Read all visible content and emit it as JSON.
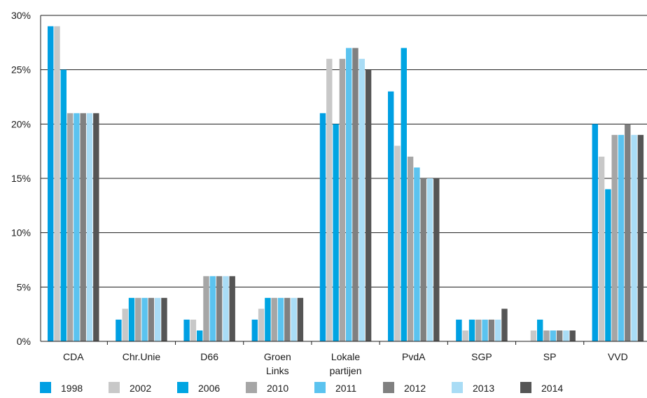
{
  "chart_data": {
    "type": "bar",
    "title": "",
    "xlabel": "",
    "ylabel": "",
    "ylim": [
      0,
      30
    ],
    "grid": true,
    "legend_position": "bottom",
    "y_ticks": [
      "0%",
      "5%",
      "10%",
      "15%",
      "20%",
      "25%",
      "30%"
    ],
    "categories": [
      [
        "CDA"
      ],
      [
        "Chr.Unie"
      ],
      [
        "D66"
      ],
      [
        "Groen",
        "Links"
      ],
      [
        "Lokale",
        "partijen"
      ],
      [
        "PvdA"
      ],
      [
        "SGP"
      ],
      [
        "SP"
      ],
      [
        "VVD"
      ]
    ],
    "series": [
      {
        "name": "1998",
        "color": "#009fe3",
        "values": [
          29,
          2,
          2,
          2,
          21,
          23,
          2,
          0,
          20
        ]
      },
      {
        "name": "2002",
        "color": "#c8c8c8",
        "values": [
          29,
          3,
          2,
          3,
          26,
          18,
          1,
          1,
          17
        ]
      },
      {
        "name": "2006",
        "color": "#00a5e2",
        "values": [
          25,
          4,
          1,
          4,
          20,
          27,
          2,
          2,
          14
        ]
      },
      {
        "name": "2010",
        "color": "#a6a6a6",
        "values": [
          21,
          4,
          6,
          4,
          26,
          17,
          2,
          1,
          19
        ]
      },
      {
        "name": "2011",
        "color": "#5bc3ef",
        "values": [
          21,
          4,
          6,
          4,
          27,
          16,
          2,
          1,
          19
        ]
      },
      {
        "name": "2012",
        "color": "#808080",
        "values": [
          21,
          4,
          6,
          4,
          27,
          15,
          2,
          1,
          20
        ]
      },
      {
        "name": "2013",
        "color": "#a9dcf5",
        "values": [
          21,
          4,
          6,
          4,
          26,
          15,
          2,
          1,
          19
        ]
      },
      {
        "name": "2014",
        "color": "#555555",
        "values": [
          21,
          4,
          6,
          4,
          25,
          15,
          3,
          1,
          19
        ]
      }
    ]
  }
}
